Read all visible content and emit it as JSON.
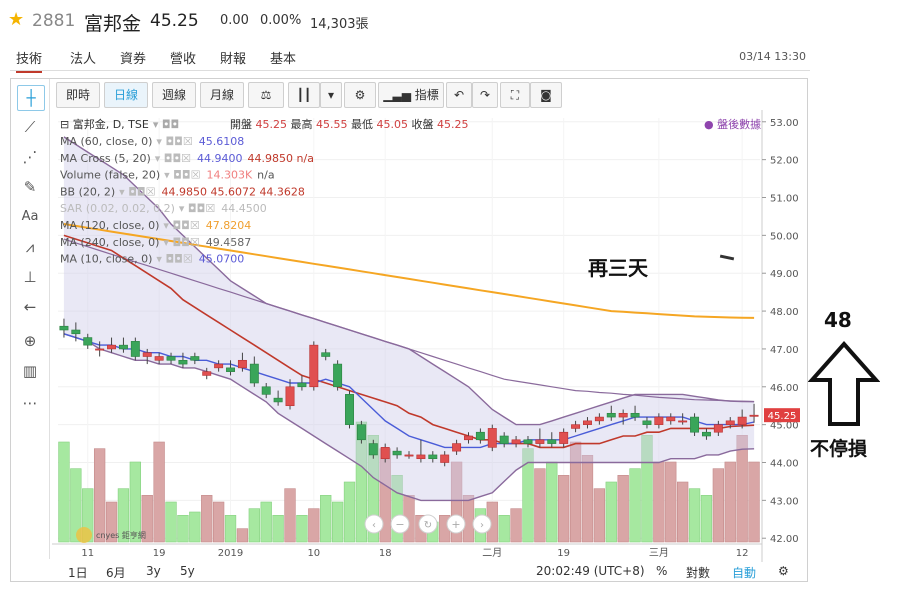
{
  "header": {
    "code": "2881",
    "name": "富邦金",
    "price": "45.25",
    "change": "0.00",
    "change_pct": "0.00%",
    "volume": "14,303張"
  },
  "tabs": [
    "技術",
    "法人",
    "資券",
    "營收",
    "財報",
    "基本"
  ],
  "datetime": "03/14 13:30",
  "toolbar": {
    "btn_intraday": "即時",
    "btn_daily": "日線",
    "btn_weekly": "週線",
    "btn_monthly": "月線",
    "btn_indicators": "指標"
  },
  "legend": {
    "symbol": "富邦金, D, TSE",
    "open_label": "開盤",
    "open": "45.25",
    "high_label": "最高",
    "high": "45.55",
    "low_label": "最低",
    "low": "45.05",
    "close_label": "收盤",
    "close": "45.25",
    "after_hours": "盤後數據",
    "studies": [
      {
        "label": "MA (60, close, 0)",
        "value": "45.6108",
        "value2": "",
        "color": "#5b5bd6"
      },
      {
        "label": "MA Cross (5, 20)",
        "value": "44.9400",
        "value2": "44.9850 n/a",
        "color": "#5b5bd6"
      },
      {
        "label": "Volume (false, 20)",
        "value": "14.303K",
        "value2": "n/a",
        "color": "#f08080"
      },
      {
        "label": "BB (20, 2)",
        "value": "44.9850 45.6072 44.3628",
        "value2": "",
        "color": "#c0392b"
      },
      {
        "label": "SAR (0.02, 0.02, 0.2)",
        "value": "44.4500",
        "value2": "",
        "color": "#bbbbbb"
      },
      {
        "label": "MA (120, close, 0)",
        "value": "47.8204",
        "value2": "",
        "color": "#f0a030"
      },
      {
        "label": "MA (240, close, 0)",
        "value": "49.4587",
        "value2": "",
        "color": "#666666"
      },
      {
        "label": "MA (10, close, 0)",
        "value": "45.0700",
        "value2": "",
        "color": "#5b5bd6"
      }
    ]
  },
  "annotations": {
    "text1": "再三天",
    "price_target": "48",
    "text2": "不停損"
  },
  "bottombar": {
    "ranges": [
      "1日",
      "6月",
      "3y",
      "5y"
    ],
    "clock": "20:02:49 (UTC+8)",
    "pct": "%",
    "log": "對數",
    "auto": "自動"
  },
  "watermark": "cnyes 鉅亨網",
  "colors": {
    "up": "#e05050",
    "down": "#3aa55a",
    "accent": "#2a9fd8",
    "ma120": "#f5a623",
    "bb": "#8060a0"
  },
  "chart_data": {
    "type": "candlestick",
    "y_ticks": [
      42.0,
      43.0,
      44.0,
      45.0,
      46.0,
      47.0,
      48.0,
      49.0,
      50.0,
      51.0,
      52.0,
      53.0
    ],
    "ylim": [
      41.9,
      53.1
    ],
    "last_price_label": "45.25",
    "x_tick_labels": [
      {
        "label": "11",
        "index": 2
      },
      {
        "label": "19",
        "index": 8
      },
      {
        "label": "2019",
        "index": 14
      },
      {
        "label": "10",
        "index": 21
      },
      {
        "label": "18",
        "index": 27
      },
      {
        "label": "二月",
        "index": 36
      },
      {
        "label": "19",
        "index": 42
      },
      {
        "label": "三月",
        "index": 50
      },
      {
        "label": "12",
        "index": 57
      }
    ],
    "candles": [
      [
        47.6,
        47.8,
        47.3,
        47.5
      ],
      [
        47.5,
        47.7,
        47.2,
        47.4
      ],
      [
        47.3,
        47.4,
        47.0,
        47.1
      ],
      [
        47.0,
        47.2,
        46.8,
        47.0
      ],
      [
        47.0,
        47.3,
        46.9,
        47.1
      ],
      [
        47.1,
        47.3,
        46.9,
        47.0
      ],
      [
        47.2,
        47.3,
        46.7,
        46.8
      ],
      [
        46.8,
        47.0,
        46.6,
        46.9
      ],
      [
        46.7,
        46.9,
        46.6,
        46.8
      ],
      [
        46.8,
        46.9,
        46.6,
        46.7
      ],
      [
        46.7,
        46.9,
        46.5,
        46.6
      ],
      [
        46.8,
        46.9,
        46.6,
        46.7
      ],
      [
        46.3,
        46.5,
        46.2,
        46.4
      ],
      [
        46.5,
        46.7,
        46.4,
        46.6
      ],
      [
        46.5,
        46.7,
        46.3,
        46.4
      ],
      [
        46.5,
        46.9,
        46.4,
        46.7
      ],
      [
        46.6,
        46.8,
        46.0,
        46.1
      ],
      [
        46.0,
        46.1,
        45.7,
        45.8
      ],
      [
        45.7,
        45.9,
        45.5,
        45.6
      ],
      [
        45.5,
        46.2,
        45.4,
        46.0
      ],
      [
        46.1,
        46.3,
        45.9,
        46.0
      ],
      [
        46.0,
        47.2,
        45.9,
        47.1
      ],
      [
        46.9,
        47.0,
        46.7,
        46.8
      ],
      [
        46.6,
        46.7,
        45.9,
        46.0
      ],
      [
        45.8,
        45.9,
        44.9,
        45.0
      ],
      [
        45.0,
        45.1,
        44.5,
        44.6
      ],
      [
        44.5,
        44.6,
        44.1,
        44.2
      ],
      [
        44.1,
        44.5,
        44.0,
        44.4
      ],
      [
        44.3,
        44.4,
        44.1,
        44.2
      ],
      [
        44.2,
        44.3,
        44.1,
        44.2
      ],
      [
        44.1,
        44.6,
        44.0,
        44.2
      ],
      [
        44.2,
        44.3,
        44.0,
        44.1
      ],
      [
        44.0,
        44.3,
        43.9,
        44.2
      ],
      [
        44.3,
        44.6,
        44.2,
        44.5
      ],
      [
        44.6,
        44.8,
        44.5,
        44.7
      ],
      [
        44.8,
        44.9,
        44.5,
        44.6
      ],
      [
        44.4,
        45.0,
        44.3,
        44.9
      ],
      [
        44.7,
        44.8,
        44.4,
        44.5
      ],
      [
        44.5,
        44.7,
        44.4,
        44.6
      ],
      [
        44.6,
        44.7,
        44.4,
        44.5
      ],
      [
        44.5,
        44.9,
        44.4,
        44.6
      ],
      [
        44.6,
        44.8,
        44.4,
        44.5
      ],
      [
        44.5,
        44.9,
        44.4,
        44.8
      ],
      [
        44.9,
        45.1,
        44.8,
        45.0
      ],
      [
        45.0,
        45.2,
        44.9,
        45.1
      ],
      [
        45.1,
        45.3,
        45.0,
        45.2
      ],
      [
        45.3,
        45.5,
        45.1,
        45.2
      ],
      [
        45.2,
        45.4,
        45.0,
        45.3
      ],
      [
        45.3,
        45.5,
        45.1,
        45.2
      ],
      [
        45.1,
        45.2,
        44.9,
        45.0
      ],
      [
        45.0,
        45.3,
        44.9,
        45.2
      ],
      [
        45.1,
        45.3,
        45.0,
        45.2
      ],
      [
        45.1,
        45.3,
        45.0,
        45.1
      ],
      [
        45.2,
        45.3,
        44.7,
        44.8
      ],
      [
        44.8,
        44.9,
        44.6,
        44.7
      ],
      [
        44.8,
        45.1,
        44.7,
        45.0
      ],
      [
        45.0,
        45.2,
        44.9,
        45.1
      ],
      [
        45.0,
        45.4,
        44.9,
        45.2
      ],
      [
        45.25,
        45.55,
        45.05,
        45.25
      ]
    ],
    "volume": [
      30,
      22,
      16,
      28,
      12,
      16,
      24,
      14,
      30,
      12,
      8,
      9,
      14,
      12,
      8,
      4,
      10,
      12,
      8,
      16,
      8,
      10,
      14,
      12,
      18,
      36,
      32,
      28,
      20,
      14,
      8,
      6,
      8,
      24,
      14,
      10,
      12,
      8,
      10,
      28,
      22,
      24,
      20,
      30,
      26,
      16,
      18,
      20,
      22,
      32,
      24,
      24,
      18,
      16,
      14,
      22,
      24,
      32,
      24
    ],
    "ma10": [
      47.4,
      47.3,
      47.2,
      47.1,
      47.1,
      47.0,
      47.0,
      46.9,
      46.9,
      46.8,
      46.8,
      46.7,
      46.7,
      46.6,
      46.6,
      46.5,
      46.4,
      46.3,
      46.2,
      46.1,
      46.1,
      46.1,
      46.2,
      46.1,
      46.0,
      45.7,
      45.4,
      45.1,
      44.9,
      44.7,
      44.6,
      44.5,
      44.4,
      44.4,
      44.4,
      44.4,
      44.5,
      44.5,
      44.5,
      44.6,
      44.6,
      44.6,
      44.6,
      44.7,
      44.8,
      44.9,
      45.0,
      45.1,
      45.2,
      45.2,
      45.2,
      45.2,
      45.2,
      45.1,
      45.0,
      45.0,
      45.0,
      45.0,
      45.07
    ],
    "ma20": [
      50.0,
      49.9,
      49.8,
      49.7,
      49.6,
      49.4,
      49.2,
      49.0,
      48.8,
      48.6,
      48.3,
      48.1,
      47.9,
      47.7,
      47.5,
      47.3,
      47.1,
      46.9,
      46.7,
      46.5,
      46.3,
      46.2,
      46.1,
      46.0,
      45.9,
      45.8,
      45.7,
      45.6,
      45.5,
      45.3,
      45.2,
      45.0,
      44.9,
      44.8,
      44.7,
      44.6,
      44.6,
      44.5,
      44.5,
      44.5,
      44.4,
      44.4,
      44.4,
      44.5,
      44.5,
      44.5,
      44.6,
      44.7,
      44.7,
      44.8,
      44.8,
      44.9,
      44.9,
      44.9,
      44.9,
      44.9,
      44.95,
      44.97,
      44.985
    ],
    "ma60": [
      49.9,
      49.8,
      49.7,
      49.6,
      49.5,
      49.4,
      49.3,
      49.2,
      49.1,
      49.0,
      48.9,
      48.8,
      48.7,
      48.6,
      48.5,
      48.4,
      48.3,
      48.2,
      48.1,
      48.0,
      47.9,
      47.8,
      47.7,
      47.6,
      47.5,
      47.4,
      47.3,
      47.2,
      47.1,
      47.0,
      46.9,
      46.8,
      46.7,
      46.6,
      46.5,
      46.4,
      46.3,
      46.2,
      46.15,
      46.1,
      46.05,
      46.0,
      45.95,
      45.9,
      45.88,
      45.85,
      45.83,
      45.8,
      45.78,
      45.75,
      45.72,
      45.7,
      45.68,
      45.66,
      45.65,
      45.64,
      45.63,
      45.62,
      45.61
    ],
    "ma120": [
      50.3,
      50.25,
      50.2,
      50.15,
      50.1,
      50.05,
      50.0,
      49.95,
      49.9,
      49.85,
      49.8,
      49.75,
      49.7,
      49.65,
      49.6,
      49.55,
      49.5,
      49.45,
      49.4,
      49.35,
      49.3,
      49.25,
      49.2,
      49.15,
      49.1,
      49.05,
      49.0,
      48.95,
      48.9,
      48.85,
      48.8,
      48.75,
      48.7,
      48.65,
      48.6,
      48.55,
      48.5,
      48.45,
      48.4,
      48.35,
      48.3,
      48.25,
      48.2,
      48.15,
      48.1,
      48.05,
      48.0,
      47.98,
      47.96,
      47.94,
      47.92,
      47.9,
      47.88,
      47.86,
      47.85,
      47.84,
      47.83,
      47.825,
      47.82
    ],
    "bb_upper": [
      52.6,
      52.4,
      52.2,
      52.0,
      51.8,
      51.6,
      51.3,
      51.0,
      50.7,
      50.3,
      50.0,
      49.7,
      49.4,
      49.1,
      48.8,
      48.6,
      48.4,
      48.2,
      48.1,
      48.0,
      47.9,
      47.8,
      47.7,
      47.6,
      47.5,
      47.4,
      47.3,
      47.2,
      47.1,
      47.0,
      46.8,
      46.6,
      46.4,
      46.2,
      46.0,
      45.7,
      45.4,
      45.2,
      45.0,
      45.0,
      45.0,
      45.1,
      45.2,
      45.3,
      45.4,
      45.5,
      45.6,
      45.7,
      45.8,
      45.8,
      45.8,
      45.8,
      45.8,
      45.75,
      45.7,
      45.65,
      45.62,
      45.61,
      45.607
    ],
    "bb_lower": [
      47.4,
      47.3,
      47.2,
      47.0,
      46.9,
      46.8,
      46.7,
      46.7,
      46.6,
      46.6,
      46.5,
      46.5,
      46.4,
      46.3,
      46.2,
      46.0,
      45.8,
      45.6,
      45.3,
      45.1,
      44.9,
      44.7,
      44.5,
      44.3,
      44.1,
      43.9,
      43.6,
      43.4,
      43.2,
      43.1,
      43.0,
      43.0,
      43.0,
      43.0,
      43.0,
      43.1,
      43.2,
      43.5,
      43.8,
      44.0,
      44.0,
      44.0,
      44.0,
      44.0,
      44.0,
      44.0,
      44.0,
      44.0,
      44.0,
      44.0,
      44.0,
      44.1,
      44.1,
      44.1,
      44.2,
      44.2,
      44.3,
      44.35,
      44.363
    ]
  }
}
